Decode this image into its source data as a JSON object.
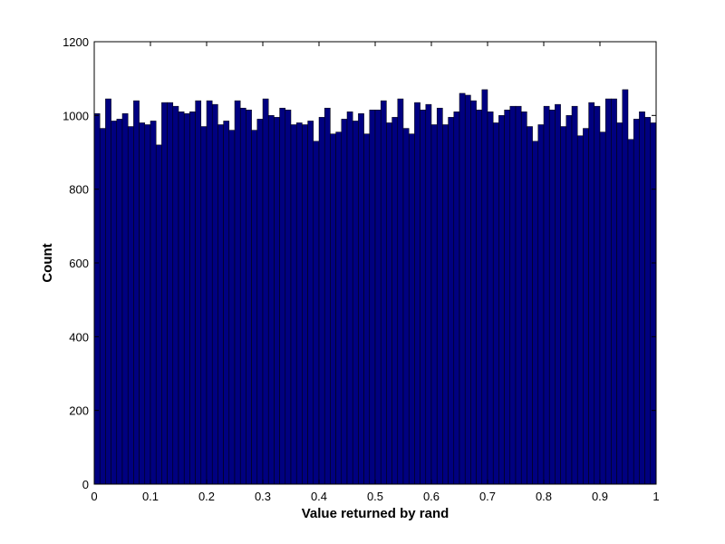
{
  "chart_data": {
    "type": "bar",
    "title": "",
    "xlabel": "Value returned by rand",
    "ylabel": "Count",
    "xlim": [
      0,
      1
    ],
    "ylim": [
      0,
      1200
    ],
    "xticks": [
      "0",
      "0.1",
      "0.2",
      "0.3",
      "0.4",
      "0.5",
      "0.6",
      "0.7",
      "0.8",
      "0.9",
      "1"
    ],
    "yticks": [
      "0",
      "200",
      "400",
      "600",
      "800",
      "1000",
      "1200"
    ],
    "grid": false,
    "legend": "none",
    "bar_color": "#000080",
    "bar_edge_color": "#000000",
    "bin_width": 0.01,
    "values": [
      1005,
      965,
      1045,
      985,
      990,
      1005,
      970,
      1040,
      980,
      975,
      985,
      920,
      1035,
      1035,
      1025,
      1010,
      1005,
      1010,
      1040,
      970,
      1040,
      1030,
      975,
      985,
      960,
      1040,
      1020,
      1015,
      960,
      990,
      1045,
      1000,
      995,
      1020,
      1015,
      975,
      980,
      975,
      985,
      930,
      995,
      1020,
      950,
      955,
      990,
      1010,
      985,
      1005,
      950,
      1015,
      1015,
      1040,
      980,
      995,
      1045,
      965,
      950,
      1035,
      1015,
      1030,
      975,
      1020,
      975,
      995,
      1010,
      1060,
      1055,
      1040,
      1015,
      1070,
      1010,
      980,
      1000,
      1015,
      1025,
      1025,
      1010,
      970,
      930,
      975,
      1025,
      1015,
      1030,
      970,
      1000,
      1025,
      945,
      965,
      1035,
      1025,
      955,
      1045,
      1045,
      980,
      1070,
      935,
      990,
      1010,
      995,
      980
    ]
  }
}
